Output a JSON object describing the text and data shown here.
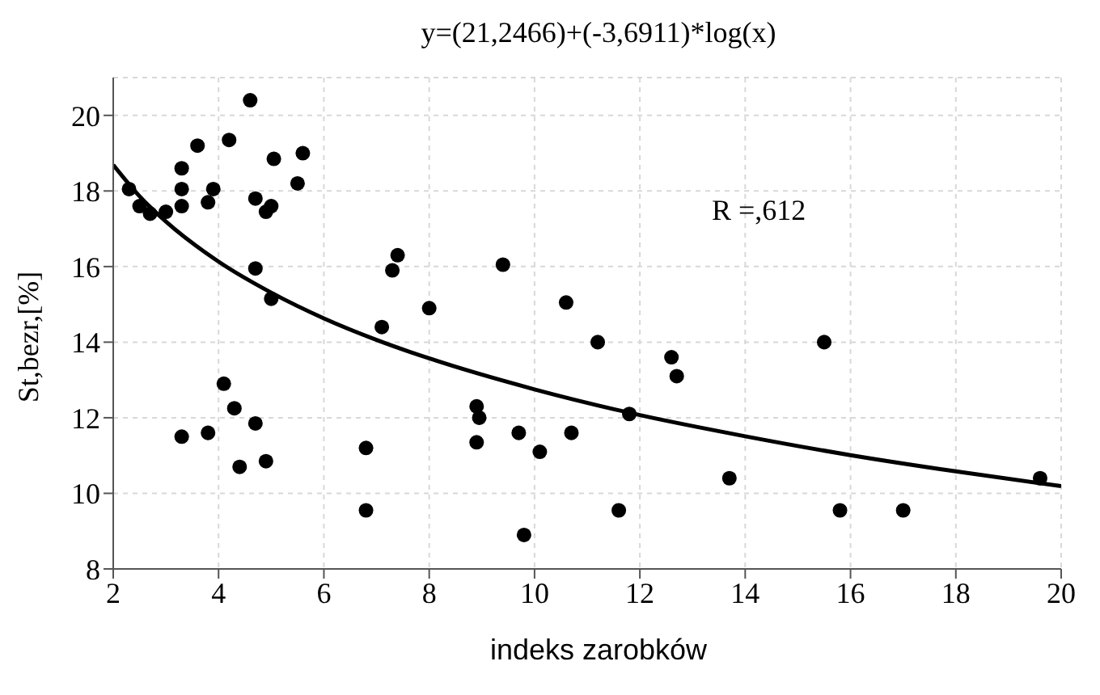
{
  "chart_data": {
    "type": "scatter",
    "title": "y=(21,2466)+(-3,6911)*log(x)",
    "xlabel": "indeks zarobków",
    "ylabel": "St,bezr,[%]",
    "xlim": [
      2,
      20
    ],
    "xticks": [
      2,
      4,
      6,
      8,
      10,
      12,
      14,
      16,
      18,
      20
    ],
    "ylim": [
      8,
      21
    ],
    "yticks": [
      8,
      10,
      12,
      14,
      16,
      18,
      20
    ],
    "grid": true,
    "marker": "circle",
    "annotations": [
      "R =,612"
    ],
    "series": [
      {
        "color": "#000000",
        "x": [
          2.3,
          2.5,
          2.7,
          3.0,
          3.3,
          3.3,
          3.3,
          3.6,
          3.8,
          3.9,
          4.2,
          4.6,
          4.7,
          4.9,
          5.0,
          5.05,
          4.7,
          5.0,
          5.5,
          5.6,
          7.1,
          7.3,
          7.4,
          8.0,
          9.4,
          10.6,
          11.2,
          12.6,
          12.7,
          15.5,
          11.8,
          4.1,
          4.3,
          3.3,
          3.8,
          4.7,
          4.4,
          4.9,
          6.8,
          6.8,
          8.9,
          8.95,
          8.9,
          9.7,
          10.7,
          10.1,
          11.6,
          9.8,
          13.7,
          15.8,
          17.0,
          19.6
        ],
        "values": [
          18.05,
          17.6,
          17.4,
          17.45,
          18.6,
          18.05,
          17.6,
          19.2,
          17.7,
          18.05,
          19.35,
          20.4,
          17.8,
          17.45,
          17.6,
          18.85,
          15.95,
          15.15,
          18.2,
          19.0,
          14.4,
          15.9,
          16.3,
          14.9,
          16.05,
          15.05,
          14.0,
          13.6,
          13.1,
          14.0,
          12.1,
          12.9,
          12.25,
          11.5,
          11.6,
          11.85,
          10.7,
          10.85,
          11.2,
          9.55,
          12.3,
          12.0,
          11.35,
          11.6,
          11.6,
          11.1,
          9.55,
          8.9,
          10.4,
          9.55,
          9.55,
          10.4
        ]
      },
      {
        "type": "line",
        "color": "#000000",
        "marker": "none",
        "x": [
          2,
          2.5,
          3,
          4,
          5,
          6,
          7,
          8,
          10,
          12,
          14,
          16,
          18,
          20
        ],
        "values": [
          18.69,
          17.86,
          17.19,
          16.13,
          15.31,
          14.63,
          14.06,
          13.57,
          12.75,
          12.07,
          11.51,
          11.01,
          10.58,
          10.19
        ]
      }
    ]
  }
}
